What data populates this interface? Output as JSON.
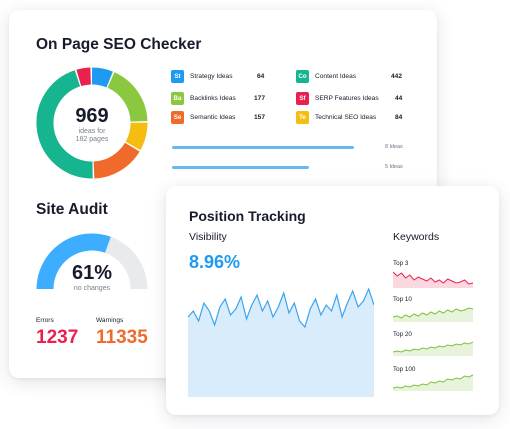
{
  "seo_checker": {
    "title": "On Page SEO Checker",
    "ideas_total": "969",
    "ideas_caption_1": "ideas for",
    "ideas_caption_2": "182 pages",
    "ideas": [
      {
        "abbr": "St",
        "label": "Strategy Ideas",
        "count": "64",
        "color": "#1e9bf0"
      },
      {
        "abbr": "Ba",
        "label": "Backlinks Ideas",
        "count": "177",
        "color": "#8bc83f"
      },
      {
        "abbr": "Se",
        "label": "Semantic Ideas",
        "count": "157",
        "color": "#f06b2b"
      },
      {
        "abbr": "Co",
        "label": "Content Ideas",
        "count": "442",
        "color": "#16b48f"
      },
      {
        "abbr": "Sf",
        "label": "SERP Features Ideas",
        "count": "44",
        "color": "#e8214e"
      },
      {
        "abbr": "Te",
        "label": "Technical SEO Ideas",
        "count": "84",
        "color": "#f5bd10"
      }
    ],
    "progress": [
      {
        "label": "8 Ideas",
        "fraction": 0.83
      },
      {
        "label": "5 Ideas",
        "fraction": 0.62
      }
    ]
  },
  "site_audit": {
    "title": "Site Audit",
    "score": "61%",
    "score_caption": "no changes",
    "score_fraction": 0.61,
    "errors_label": "Errors",
    "errors_value": "1237",
    "warnings_label": "Warnings",
    "warnings_value": "11335",
    "colors": {
      "gauge": "#3daeff",
      "track": "#e8eaee",
      "errors": "#e8214e",
      "warnings": "#f06b2b"
    }
  },
  "position_tracking": {
    "title": "Position Tracking",
    "visibility_label": "Visibility",
    "visibility_value": "8.96%",
    "keywords_label": "Keywords",
    "keyword_rows": [
      {
        "label": "Top 3",
        "color": "#e8214e"
      },
      {
        "label": "Top 10",
        "color": "#7cc13a"
      },
      {
        "label": "Top 20",
        "color": "#7cc13a"
      },
      {
        "label": "Top 100",
        "color": "#7cc13a"
      }
    ],
    "colors": {
      "accent": "#1e9bf0",
      "area_fill": "#d8ecfb",
      "area_line": "#3aa5ee"
    }
  }
}
